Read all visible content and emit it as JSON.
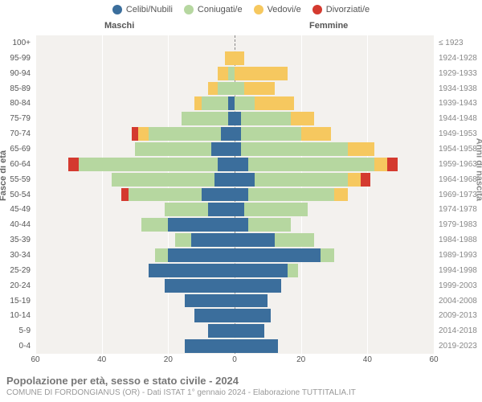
{
  "legend": [
    {
      "label": "Celibi/Nubili",
      "color": "#3b6e9c"
    },
    {
      "label": "Coniugati/e",
      "color": "#b6d7a0"
    },
    {
      "label": "Vedovi/e",
      "color": "#f6c85f"
    },
    {
      "label": "Divorziati/e",
      "color": "#d43a2f"
    }
  ],
  "headers": {
    "male": "Maschi",
    "female": "Femmine"
  },
  "axis_titles": {
    "left": "Fasce di età",
    "right": "Anni di nascita"
  },
  "x_axis": {
    "max": 60,
    "ticks": [
      60,
      40,
      20,
      0,
      20,
      40,
      60
    ]
  },
  "footer": {
    "line1": "Popolazione per età, sesso e stato civile - 2024",
    "line2": "COMUNE DI FORDONGIANUS (OR) - Dati ISTAT 1° gennaio 2024 - Elaborazione TUTTITALIA.IT"
  },
  "colors": {
    "plot_bg": "#f3f1ee",
    "grid": "#ffffff",
    "center_line": "#888888",
    "text": "#555555",
    "text_muted": "#999999"
  },
  "rows": [
    {
      "age": "100+",
      "birth": "≤ 1923",
      "m": [
        0,
        0,
        0,
        0
      ],
      "f": [
        0,
        0,
        0,
        0
      ]
    },
    {
      "age": "95-99",
      "birth": "1924-1928",
      "m": [
        0,
        0,
        3,
        0
      ],
      "f": [
        0,
        0,
        3,
        0
      ]
    },
    {
      "age": "90-94",
      "birth": "1929-1933",
      "m": [
        0,
        2,
        3,
        0
      ],
      "f": [
        0,
        0,
        16,
        0
      ]
    },
    {
      "age": "85-89",
      "birth": "1934-1938",
      "m": [
        0,
        5,
        3,
        0
      ],
      "f": [
        0,
        3,
        9,
        0
      ]
    },
    {
      "age": "80-84",
      "birth": "1939-1943",
      "m": [
        2,
        8,
        2,
        0
      ],
      "f": [
        0,
        6,
        12,
        0
      ]
    },
    {
      "age": "75-79",
      "birth": "1944-1948",
      "m": [
        2,
        14,
        0,
        0
      ],
      "f": [
        2,
        15,
        7,
        0
      ]
    },
    {
      "age": "70-74",
      "birth": "1949-1953",
      "m": [
        4,
        22,
        3,
        2
      ],
      "f": [
        2,
        18,
        9,
        0
      ]
    },
    {
      "age": "65-69",
      "birth": "1954-1958",
      "m": [
        7,
        23,
        0,
        0
      ],
      "f": [
        2,
        32,
        8,
        0
      ]
    },
    {
      "age": "60-64",
      "birth": "1959-1963",
      "m": [
        5,
        42,
        0,
        3
      ],
      "f": [
        4,
        38,
        4,
        3
      ]
    },
    {
      "age": "55-59",
      "birth": "1964-1968",
      "m": [
        6,
        31,
        0,
        0
      ],
      "f": [
        6,
        28,
        4,
        3
      ]
    },
    {
      "age": "50-54",
      "birth": "1969-1973",
      "m": [
        10,
        22,
        0,
        2
      ],
      "f": [
        4,
        26,
        4,
        0
      ]
    },
    {
      "age": "45-49",
      "birth": "1974-1978",
      "m": [
        8,
        13,
        0,
        0
      ],
      "f": [
        3,
        19,
        0,
        0
      ]
    },
    {
      "age": "40-44",
      "birth": "1979-1983",
      "m": [
        20,
        8,
        0,
        0
      ],
      "f": [
        4,
        13,
        0,
        0
      ]
    },
    {
      "age": "35-39",
      "birth": "1984-1988",
      "m": [
        13,
        5,
        0,
        0
      ],
      "f": [
        12,
        12,
        0,
        0
      ]
    },
    {
      "age": "30-34",
      "birth": "1989-1993",
      "m": [
        20,
        4,
        0,
        0
      ],
      "f": [
        26,
        4,
        0,
        0
      ]
    },
    {
      "age": "25-29",
      "birth": "1994-1998",
      "m": [
        26,
        0,
        0,
        0
      ],
      "f": [
        16,
        3,
        0,
        0
      ]
    },
    {
      "age": "20-24",
      "birth": "1999-2003",
      "m": [
        21,
        0,
        0,
        0
      ],
      "f": [
        14,
        0,
        0,
        0
      ]
    },
    {
      "age": "15-19",
      "birth": "2004-2008",
      "m": [
        15,
        0,
        0,
        0
      ],
      "f": [
        10,
        0,
        0,
        0
      ]
    },
    {
      "age": "10-14",
      "birth": "2009-2013",
      "m": [
        12,
        0,
        0,
        0
      ],
      "f": [
        11,
        0,
        0,
        0
      ]
    },
    {
      "age": "5-9",
      "birth": "2014-2018",
      "m": [
        8,
        0,
        0,
        0
      ],
      "f": [
        9,
        0,
        0,
        0
      ]
    },
    {
      "age": "0-4",
      "birth": "2019-2023",
      "m": [
        15,
        0,
        0,
        0
      ],
      "f": [
        13,
        0,
        0,
        0
      ]
    }
  ]
}
